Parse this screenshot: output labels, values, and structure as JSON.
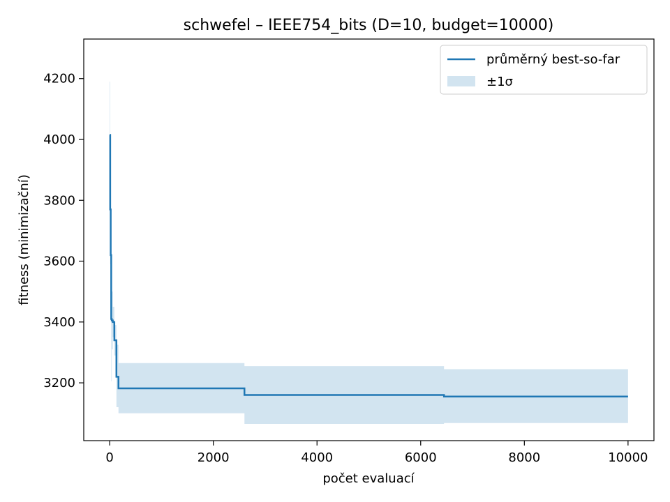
{
  "chart_data": {
    "type": "line",
    "title": "schwefel – IEEE754_bits (D=10, budget=10000)",
    "xlabel": "počet evaluací",
    "ylabel": "fitness (minimizační)",
    "xlim": [
      -500,
      10500
    ],
    "ylim": [
      3010,
      4330
    ],
    "xticks": [
      0,
      2000,
      4000,
      6000,
      8000,
      10000
    ],
    "yticks": [
      3200,
      3400,
      3600,
      3800,
      4000,
      4200
    ],
    "grid": false,
    "legend_position": "top-right",
    "series": [
      {
        "name": "průměrný best-so-far",
        "color": "#1f77b4",
        "step": "post",
        "x": [
          0,
          10,
          20,
          30,
          40,
          60,
          90,
          130,
          170,
          2600,
          6450,
          10000
        ],
        "y": [
          4015,
          3770,
          3620,
          3410,
          3405,
          3400,
          3340,
          3220,
          3182,
          3160,
          3155,
          3155
        ]
      }
    ],
    "bands": [
      {
        "name": "±1σ",
        "color": "#1f77b4",
        "opacity": 0.2,
        "step": "post",
        "x": [
          0,
          10,
          20,
          30,
          40,
          60,
          90,
          130,
          170,
          2600,
          6450,
          10000
        ],
        "upper": [
          4190,
          3950,
          3700,
          3615,
          3500,
          3450,
          3390,
          3325,
          3265,
          3255,
          3245,
          3245
        ],
        "lower": [
          3840,
          3590,
          3540,
          3205,
          3310,
          3350,
          3290,
          3120,
          3100,
          3065,
          3068,
          3068
        ]
      }
    ]
  }
}
